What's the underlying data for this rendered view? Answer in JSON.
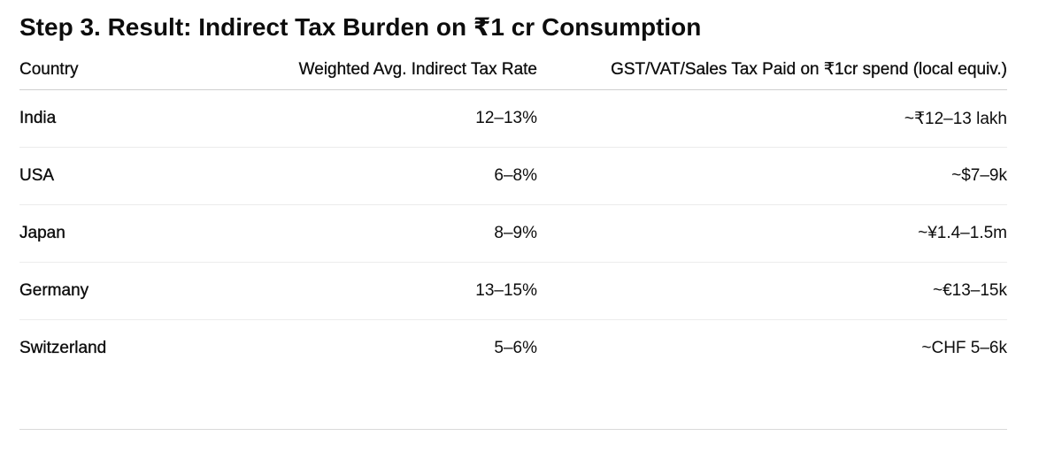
{
  "heading": "Step 3. Result: Indirect Tax Burden on ₹1 cr Consumption",
  "table": {
    "columns": [
      "Country",
      "Weighted Avg. Indirect Tax Rate",
      "GST/VAT/Sales Tax Paid on ₹1cr spend (local equiv.)"
    ],
    "rows": [
      {
        "country": "India",
        "rate": "12–13%",
        "paid": "~₹12–13 lakh"
      },
      {
        "country": "USA",
        "rate": "6–8%",
        "paid": "~$7–9k"
      },
      {
        "country": "Japan",
        "rate": "8–9%",
        "paid": "~¥1.4–1.5m"
      },
      {
        "country": "Germany",
        "rate": "13–15%",
        "paid": "~€13–15k"
      },
      {
        "country": "Switzerland",
        "rate": "5–6%",
        "paid": "~CHF 5–6k"
      }
    ]
  }
}
